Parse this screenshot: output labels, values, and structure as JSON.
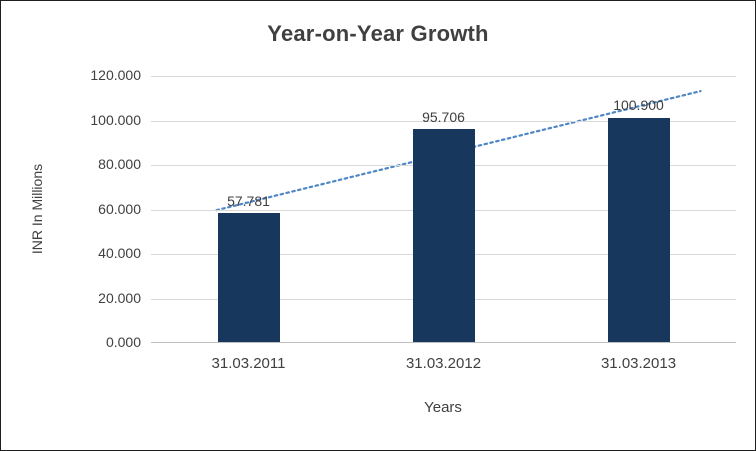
{
  "title": "Year-on-Year Growth",
  "colors": {
    "bar": "#17375D",
    "trendline": "#4F86C6",
    "gridline": "#D9D9D9",
    "axis_line": "#BFBFBF",
    "text": "#404040"
  },
  "chart_data": {
    "type": "bar",
    "title": "Year-on-Year Growth",
    "categories": [
      "31.03.2011",
      "31.03.2012",
      "31.03.2013"
    ],
    "values": [
      57.781,
      95.706,
      100.9
    ],
    "value_labels": [
      "57.781",
      "95.706",
      "100.900"
    ],
    "xlabel": "Years",
    "ylabel": "INR In Millions",
    "ylim": [
      0,
      120
    ],
    "ytick_step": 20,
    "ytick_labels": [
      "0.000",
      "20.000",
      "40.000",
      "60.000",
      "80.000",
      "100.000",
      "120.000"
    ],
    "grid": true,
    "legend": "none",
    "trendline": {
      "style": "dotted",
      "fit": "linear"
    }
  }
}
